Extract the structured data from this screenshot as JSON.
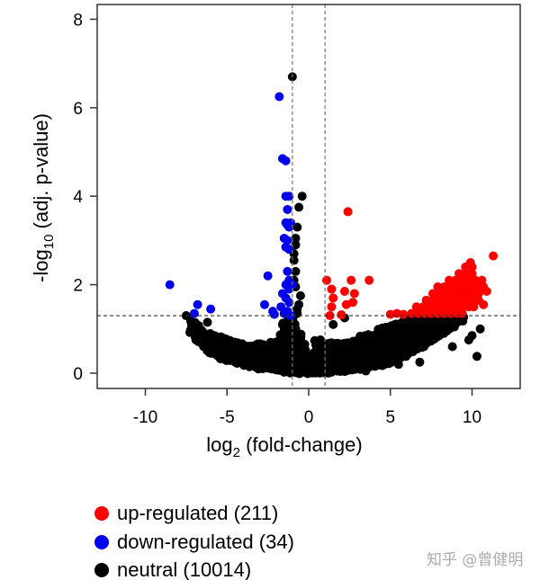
{
  "chart_data": {
    "type": "scatter",
    "title": "",
    "xlabel": {
      "main": "log",
      "sub": "2",
      "rest": " (fold-change)"
    },
    "ylabel": {
      "main": "-log",
      "sub": "10",
      "rest": " (adj. p-value)"
    },
    "xlim": [
      -12.5,
      13.5
    ],
    "ylim": [
      -0.35,
      8.3
    ],
    "xticks": [
      -10,
      -5,
      0,
      5,
      10
    ],
    "xtick_labels": [
      "-10",
      "-5",
      "0",
      "5",
      "10"
    ],
    "yticks": [
      0,
      2,
      4,
      6,
      8
    ],
    "ytick_labels": [
      "0",
      "2",
      "4",
      "6",
      "8"
    ],
    "thresholds": {
      "log2fc": [
        -1,
        1
      ],
      "neg_log10_padj": 1.3
    },
    "grid": false,
    "colors": {
      "up": "#ff0000",
      "down": "#0000ee",
      "neutral": "#000000",
      "threshold": "#555555"
    },
    "legend": {
      "placement": "bottom-left",
      "entries": [
        {
          "label": "up-regulated (211)",
          "color": "#ff0000"
        },
        {
          "label": "down-regulated (34)",
          "color": "#0000ee"
        },
        {
          "label": "neutral (10014)",
          "color": "#000000"
        }
      ]
    },
    "series": [
      {
        "name": "neutral",
        "count": 10014,
        "color": "#000000",
        "band": [
          [
            -7.2,
            0.9,
            1.25
          ],
          [
            -6.5,
            0.6,
            1.0
          ],
          [
            -6,
            0.45,
            0.9
          ],
          [
            -5,
            0.3,
            0.75
          ],
          [
            -4,
            0.2,
            0.65
          ],
          [
            -3,
            0.12,
            0.7
          ],
          [
            -2,
            0.06,
            0.75
          ],
          [
            -1.5,
            0.04,
            1.2
          ],
          [
            -1,
            0.02,
            1.3
          ],
          [
            -0.5,
            0.0,
            0.9
          ],
          [
            0,
            0.0,
            0.3
          ],
          [
            0.5,
            0.0,
            0.8
          ],
          [
            1,
            0.02,
            0.7
          ],
          [
            2,
            0.05,
            0.75
          ],
          [
            3,
            0.1,
            0.8
          ],
          [
            4,
            0.15,
            0.95
          ],
          [
            5,
            0.25,
            1.1
          ],
          [
            6,
            0.4,
            1.25
          ],
          [
            7,
            0.6,
            1.3
          ],
          [
            8,
            0.85,
            1.3
          ],
          [
            9,
            1.1,
            1.3
          ],
          [
            9.5,
            1.2,
            1.3
          ]
        ],
        "points": [
          [
            -1.0,
            6.7
          ],
          [
            -0.4,
            4.0
          ],
          [
            -0.6,
            3.75
          ],
          [
            -0.7,
            3.3
          ],
          [
            -0.8,
            3.05
          ],
          [
            -0.8,
            2.9
          ],
          [
            -0.9,
            2.7
          ],
          [
            -0.9,
            2.55
          ],
          [
            -0.8,
            2.3
          ],
          [
            -0.9,
            2.1
          ],
          [
            -0.8,
            1.95
          ],
          [
            -0.5,
            1.75
          ],
          [
            -0.6,
            1.55
          ],
          [
            -0.7,
            1.45
          ],
          [
            -0.7,
            1.35
          ],
          [
            1.5,
            1.1
          ],
          [
            2.2,
            1.25
          ],
          [
            10.5,
            1.0
          ],
          [
            10.0,
            0.85
          ],
          [
            10.3,
            0.38
          ],
          [
            9.8,
            0.75
          ],
          [
            8.8,
            0.6
          ],
          [
            6.8,
            0.25
          ],
          [
            5.5,
            0.2
          ],
          [
            3.5,
            0.05
          ],
          [
            -7.5,
            1.3
          ],
          [
            -6.9,
            0.75
          ],
          [
            -6.6,
            0.85
          ],
          [
            -6.2,
            1.15
          ],
          [
            -5.5,
            0.75
          ]
        ]
      },
      {
        "name": "down-regulated",
        "count": 34,
        "color": "#0000ee",
        "points": [
          [
            -8.5,
            2.0
          ],
          [
            -6.8,
            1.55
          ],
          [
            -7.0,
            1.35
          ],
          [
            -6.0,
            1.45
          ],
          [
            -2.5,
            2.2
          ],
          [
            -2.7,
            1.55
          ],
          [
            -2.2,
            1.4
          ],
          [
            -2.1,
            1.33
          ],
          [
            -1.8,
            6.25
          ],
          [
            -1.6,
            4.85
          ],
          [
            -1.4,
            4.8
          ],
          [
            -1.4,
            4.0
          ],
          [
            -1.2,
            4.0
          ],
          [
            -1.3,
            3.7
          ],
          [
            -1.4,
            3.4
          ],
          [
            -1.3,
            3.35
          ],
          [
            -1.2,
            3.3
          ],
          [
            -1.3,
            3.0
          ],
          [
            -1.4,
            2.85
          ],
          [
            -1.2,
            2.8
          ],
          [
            -1.3,
            2.3
          ],
          [
            -1.4,
            2.0
          ],
          [
            -1.2,
            1.9
          ],
          [
            -1.6,
            1.8
          ],
          [
            -1.4,
            1.7
          ],
          [
            -1.2,
            1.6
          ],
          [
            -1.7,
            1.5
          ],
          [
            -1.3,
            1.4
          ],
          [
            -1.1,
            1.3
          ],
          [
            -1.5,
            1.35
          ],
          [
            -1.2,
            2.1
          ],
          [
            -1.5,
            3.05
          ],
          [
            -1.1,
            3.4
          ],
          [
            -1.0,
            2.0
          ]
        ]
      },
      {
        "name": "up-regulated",
        "count": 211,
        "color": "#ff0000",
        "points": [
          [
            2.4,
            3.65
          ],
          [
            1.1,
            2.1
          ],
          [
            1.4,
            1.9
          ],
          [
            1.5,
            1.7
          ],
          [
            1.4,
            1.5
          ],
          [
            2.2,
            1.85
          ],
          [
            2.6,
            2.1
          ],
          [
            2.8,
            1.8
          ],
          [
            2.7,
            1.6
          ],
          [
            2.3,
            1.55
          ],
          [
            3.7,
            2.1
          ],
          [
            1.3,
            1.3
          ],
          [
            2.0,
            1.32
          ],
          [
            11.3,
            2.65
          ],
          [
            10.9,
            1.85
          ],
          [
            10.7,
            1.55
          ],
          [
            5.0,
            1.33
          ],
          [
            5.4,
            1.35
          ],
          [
            5.8,
            1.33
          ],
          [
            6.3,
            1.35
          ],
          [
            6.7,
            1.35
          ],
          [
            7.1,
            1.35
          ],
          [
            7.5,
            1.35
          ],
          [
            7.9,
            1.35
          ],
          [
            8.3,
            1.35
          ],
          [
            8.7,
            1.35
          ],
          [
            9.1,
            1.35
          ],
          [
            9.4,
            1.35
          ],
          [
            6.6,
            1.5
          ],
          [
            7.0,
            1.5
          ],
          [
            7.4,
            1.5
          ],
          [
            7.8,
            1.5
          ],
          [
            8.2,
            1.5
          ],
          [
            8.6,
            1.5
          ],
          [
            9.0,
            1.5
          ],
          [
            9.4,
            1.5
          ],
          [
            9.8,
            1.5
          ],
          [
            10.1,
            1.5
          ],
          [
            7.2,
            1.65
          ],
          [
            7.6,
            1.65
          ],
          [
            8.0,
            1.65
          ],
          [
            8.4,
            1.65
          ],
          [
            8.8,
            1.65
          ],
          [
            9.2,
            1.65
          ],
          [
            9.6,
            1.65
          ],
          [
            10.0,
            1.65
          ],
          [
            10.4,
            1.65
          ],
          [
            7.6,
            1.8
          ],
          [
            8.0,
            1.8
          ],
          [
            8.4,
            1.8
          ],
          [
            8.8,
            1.8
          ],
          [
            9.2,
            1.8
          ],
          [
            9.6,
            1.8
          ],
          [
            10.0,
            1.8
          ],
          [
            10.4,
            1.8
          ],
          [
            7.9,
            1.95
          ],
          [
            8.3,
            1.95
          ],
          [
            8.7,
            1.95
          ],
          [
            9.1,
            1.95
          ],
          [
            9.5,
            1.95
          ],
          [
            9.9,
            1.95
          ],
          [
            10.3,
            1.95
          ],
          [
            10.7,
            1.95
          ],
          [
            8.6,
            2.1
          ],
          [
            9.0,
            2.1
          ],
          [
            9.4,
            2.1
          ],
          [
            9.8,
            2.1
          ],
          [
            10.2,
            2.1
          ],
          [
            10.6,
            2.1
          ],
          [
            9.2,
            2.25
          ],
          [
            9.6,
            2.25
          ],
          [
            10.0,
            2.25
          ],
          [
            9.6,
            2.4
          ],
          [
            10.0,
            2.4
          ],
          [
            9.9,
            2.5
          ]
        ]
      }
    ]
  },
  "watermark": "知乎 @曾健明"
}
